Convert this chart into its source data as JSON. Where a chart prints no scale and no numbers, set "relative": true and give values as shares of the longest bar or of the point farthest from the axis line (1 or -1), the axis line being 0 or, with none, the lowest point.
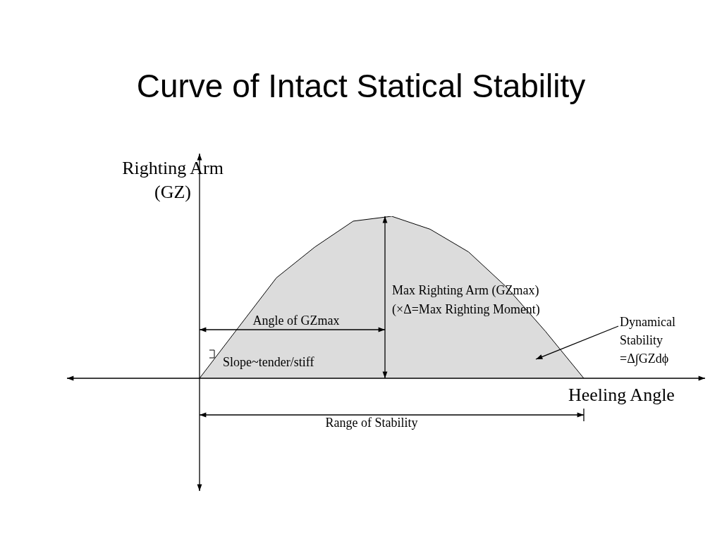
{
  "chart_data": {
    "type": "area",
    "title": "Curve of Intact Statical Stability",
    "xlabel": "Heeling Angle",
    "ylabel": "Righting Arm (GZ)",
    "relative": true,
    "categories": [
      null,
      null,
      null,
      null,
      null,
      null,
      null,
      null,
      null,
      null,
      null
    ],
    "series": [
      {
        "color": "#dcdcdc",
        "values": [
          0,
          0.31,
          0.62,
          0.81,
          0.97,
          1,
          0.92,
          0.78,
          0.56,
          0.29,
          0
        ]
      }
    ],
    "annotations": [
      "Angle of GZmax",
      "Max Righting Arm (GZmax)",
      "(×Δ=Max Righting Moment)",
      "Dynamical Stability =Δ∫GZdϕ",
      "Slope~tender/stiff",
      "Range of Stability"
    ],
    "grid": false,
    "legend": false
  }
}
